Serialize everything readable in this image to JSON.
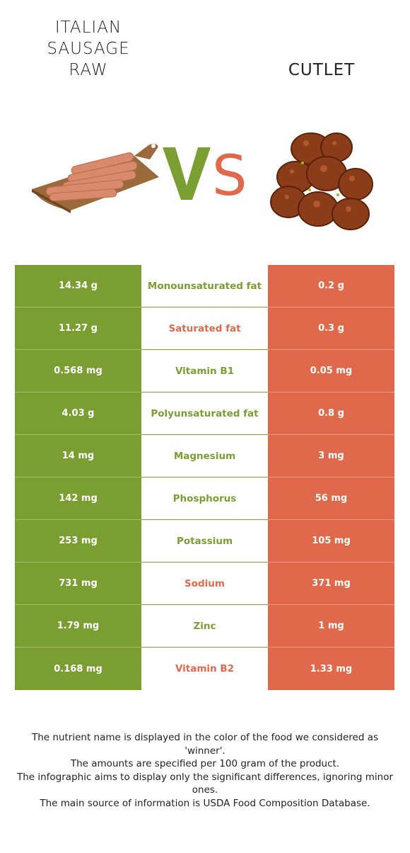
{
  "header": {
    "left_title_lines": [
      "ITALIAN",
      "SAUSAGE",
      "RAW"
    ],
    "right_title": "CUTLET",
    "vs_text": [
      "V",
      "S"
    ]
  },
  "colors": {
    "left_winner": "#7b9e32",
    "right_winner": "#e0694b"
  },
  "rows": [
    {
      "left": "14.34 g",
      "nutrient": "Monounsaturated fat",
      "right": "0.2 g",
      "winner": "left"
    },
    {
      "left": "11.27 g",
      "nutrient": "Saturated fat",
      "right": "0.3 g",
      "winner": "right"
    },
    {
      "left": "0.568 mg",
      "nutrient": "Vitamin B1",
      "right": "0.05 mg",
      "winner": "left"
    },
    {
      "left": "4.03 g",
      "nutrient": "Polyunsaturated fat",
      "right": "0.8 g",
      "winner": "left"
    },
    {
      "left": "14 mg",
      "nutrient": "Magnesium",
      "right": "3 mg",
      "winner": "left"
    },
    {
      "left": "142 mg",
      "nutrient": "Phosphorus",
      "right": "56 mg",
      "winner": "left"
    },
    {
      "left": "253 mg",
      "nutrient": "Potassium",
      "right": "105 mg",
      "winner": "left"
    },
    {
      "left": "731 mg",
      "nutrient": "Sodium",
      "right": "371 mg",
      "winner": "right"
    },
    {
      "left": "1.79 mg",
      "nutrient": "Zinc",
      "right": "1 mg",
      "winner": "left"
    },
    {
      "left": "0.168 mg",
      "nutrient": "Vitamin B2",
      "right": "1.33 mg",
      "winner": "right"
    }
  ],
  "footer": [
    "The nutrient name is displayed in the color of the food we considered as 'winner'.",
    "The amounts are specified per 100 gram of the product.",
    "The infographic aims to display only the significant differences, ignoring minor ones.",
    "The main source of information is USDA Food Composition Database."
  ]
}
